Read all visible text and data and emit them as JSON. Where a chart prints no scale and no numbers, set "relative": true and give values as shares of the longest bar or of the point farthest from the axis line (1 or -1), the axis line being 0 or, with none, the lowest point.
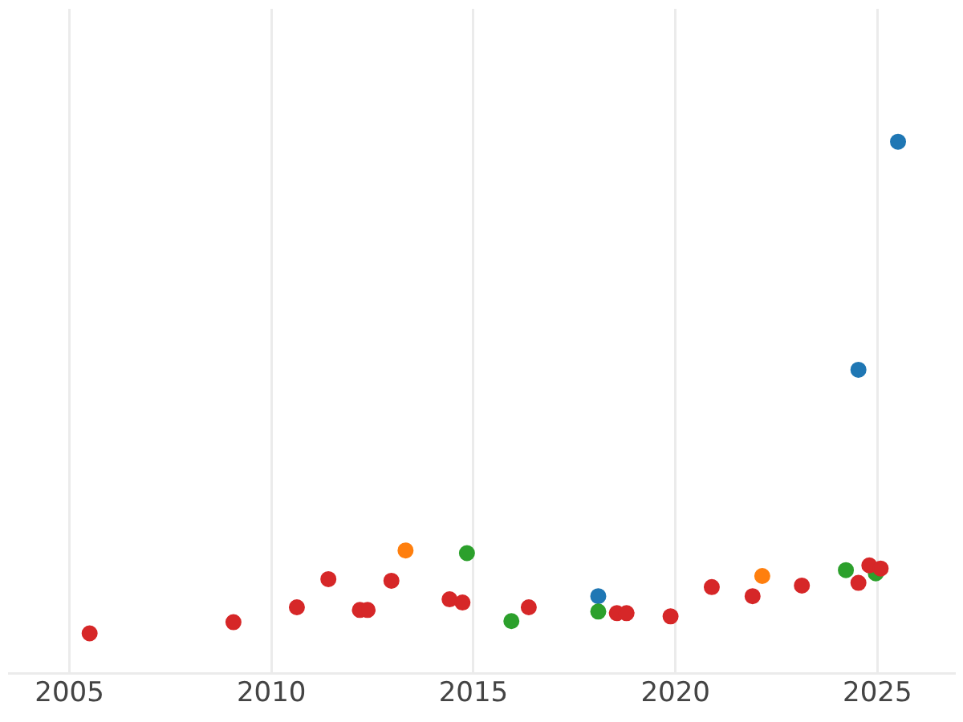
{
  "chart_data": {
    "type": "scatter",
    "relative": true,
    "grid": "x",
    "legend": false,
    "marker": "circle",
    "xlim": [
      2003.5,
      2026.9
    ],
    "xticks": [
      2005,
      2010,
      2015,
      2020,
      2025
    ],
    "series": [
      {
        "color": "#d62728",
        "x": [
          2005.5,
          2009.06,
          2010.63,
          2011.41,
          2012.19,
          2012.38,
          2012.97,
          2014.41,
          2014.73,
          2016.37,
          2018.55,
          2018.79,
          2019.88,
          2020.9,
          2021.91,
          2023.13,
          2024.53,
          2024.8,
          2025.08
        ],
        "values": [
          0.075,
          0.096,
          0.124,
          0.177,
          0.119,
          0.119,
          0.174,
          0.139,
          0.133,
          0.124,
          0.113,
          0.113,
          0.107,
          0.162,
          0.145,
          0.165,
          0.17,
          0.203,
          0.197
        ]
      },
      {
        "color": "#ff7f0e",
        "x": [
          2013.32,
          2022.15
        ],
        "values": [
          0.231,
          0.183
        ]
      },
      {
        "color": "#2ca02c",
        "x": [
          2014.84,
          2015.94,
          2018.09,
          2024.22,
          2024.96
        ],
        "values": [
          0.226,
          0.098,
          0.116,
          0.194,
          0.188
        ]
      },
      {
        "color": "#1f77b4",
        "x": [
          2018.09,
          2024.53,
          2025.51
        ],
        "values": [
          0.145,
          0.571,
          1
        ]
      }
    ]
  }
}
